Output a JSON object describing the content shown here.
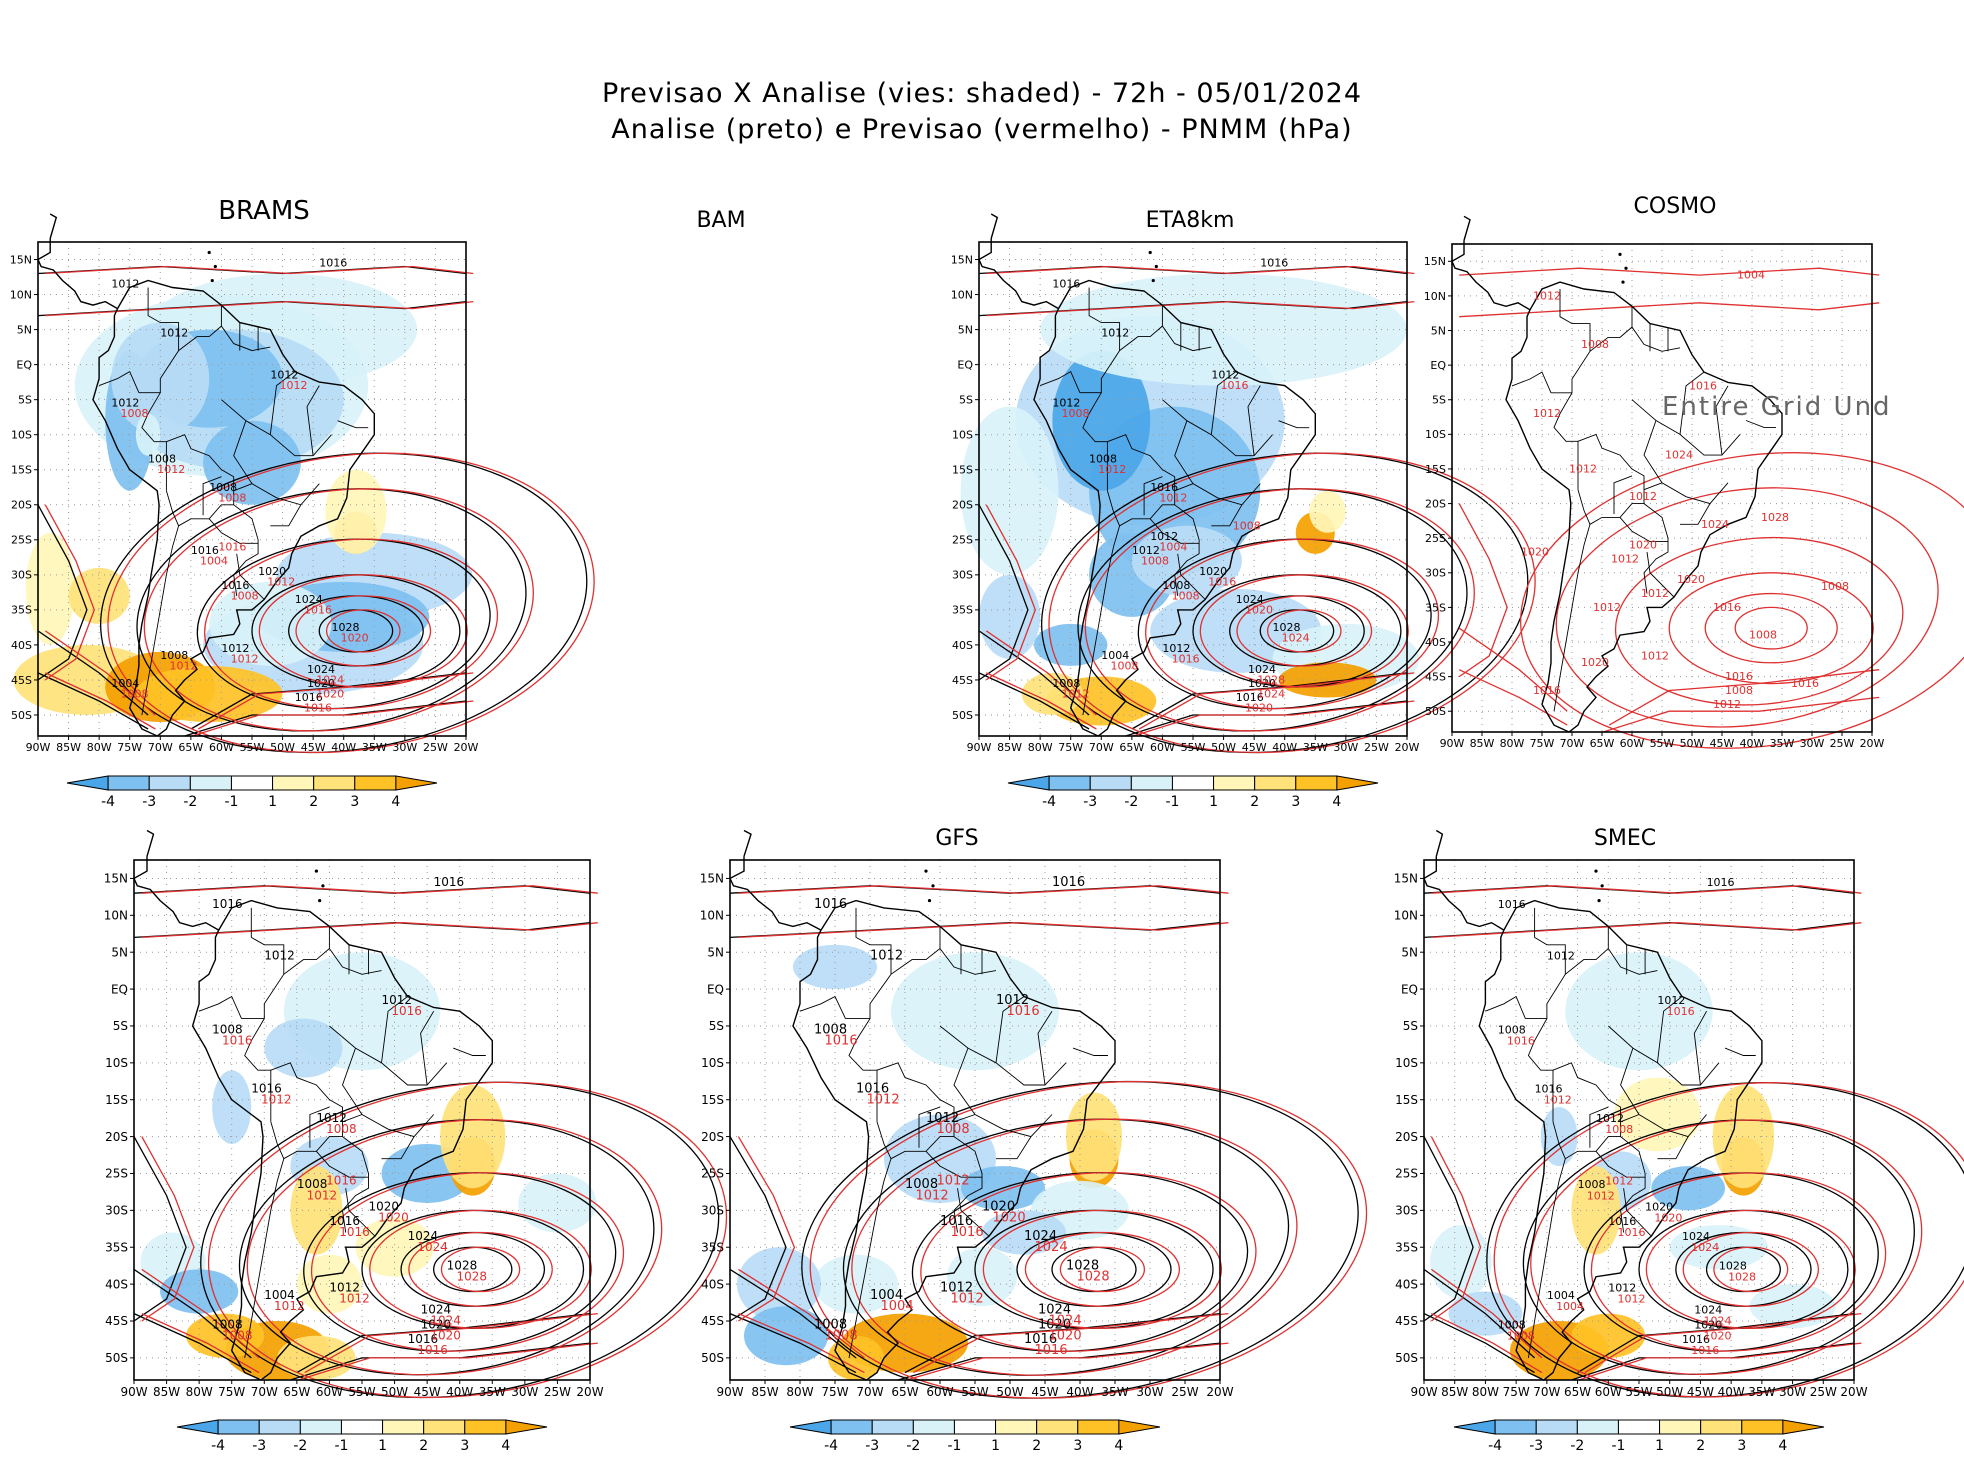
{
  "header": {
    "line1": "Previsao X Analise (vies: shaded) - 72h - 05/01/2024",
    "line2": "Analise (preto) e Previsao (vermelho) - PNMM (hPa)"
  },
  "colors": {
    "neg4": "#4aa6e8",
    "neg3": "#7ec0f0",
    "neg2": "#b8dcf6",
    "neg1": "#d8f2f8",
    "pos1": "#fff6b8",
    "pos2": "#ffe27a",
    "pos3": "#ffc226",
    "pos4": "#f4a000",
    "analysis_contour": "#000000",
    "forecast_contour": "#e03030"
  },
  "axis": {
    "lat_labels": [
      "15N",
      "10N",
      "5N",
      "EQ",
      "5S",
      "10S",
      "15S",
      "20S",
      "25S",
      "30S",
      "35S",
      "40S",
      "45S",
      "50S"
    ],
    "lon_labels": [
      "90W",
      "85W",
      "80W",
      "75W",
      "70W",
      "65W",
      "60W",
      "55W",
      "50W",
      "45W",
      "40W",
      "35W",
      "30W",
      "25W",
      "20W"
    ]
  },
  "colorbar": {
    "labels": [
      "-4",
      "-3",
      "-2",
      "-1",
      "1",
      "2",
      "3",
      "4"
    ]
  },
  "panels": [
    {
      "id": "brams",
      "title": "BRAMS",
      "show_map": true,
      "show_bias": true,
      "show_colorbar": true,
      "show_analysis": true,
      "labels_black": [
        "1016",
        "1012",
        "1012",
        "1012",
        "1012",
        "1008",
        "1008",
        "1016",
        "1016",
        "1020",
        "1024",
        "1028",
        "1024",
        "1020",
        "1016",
        "1012",
        "1004",
        "1008"
      ],
      "labels_red": [
        "1012",
        "1008",
        "1012",
        "1008",
        "1004",
        "1008",
        "1012",
        "1016",
        "1020",
        "1024",
        "1020",
        "1016",
        "1012",
        "1008",
        "1012",
        "1016"
      ]
    },
    {
      "id": "bam",
      "title": "BAM",
      "show_map": false,
      "show_bias": false,
      "show_colorbar": false,
      "show_analysis": false,
      "labels_black": [],
      "labels_red": []
    },
    {
      "id": "eta8km",
      "title": "ETA8km",
      "show_map": true,
      "show_bias": true,
      "show_colorbar": true,
      "show_analysis": true,
      "labels_black": [
        "1016",
        "1016",
        "1012",
        "1012",
        "1012",
        "1008",
        "1016",
        "1012",
        "1008",
        "1020",
        "1024",
        "1028",
        "1024",
        "1020",
        "1016",
        "1012",
        "1008",
        "1004",
        "1012"
      ],
      "labels_red": [
        "1016",
        "1008",
        "1012",
        "1012",
        "1008",
        "1008",
        "1016",
        "1020",
        "1024",
        "1028",
        "1024",
        "1020",
        "1016",
        "1012",
        "1008",
        "1004",
        "1008"
      ]
    },
    {
      "id": "cosmo",
      "title": "COSMO",
      "show_map": true,
      "show_bias": false,
      "show_colorbar": false,
      "show_analysis": false,
      "undef_text": "Entire Grid Und",
      "labels_black": [],
      "labels_red": [
        "1016",
        "1012",
        "1012",
        "1012",
        "1012",
        "1012",
        "1020",
        "1016",
        "1008",
        "1016",
        "1008",
        "1012",
        "1012",
        "1016",
        "1020",
        "1020",
        "1024",
        "1028",
        "1024",
        "1020",
        "1012",
        "1016",
        "1008",
        "1004",
        "1012",
        "1008"
      ]
    },
    {
      "id": "bottom-left",
      "title": "",
      "show_map": true,
      "show_bias": true,
      "show_colorbar": true,
      "show_analysis": true,
      "labels_black": [
        "1016",
        "1016",
        "1012",
        "1012",
        "1008",
        "1016",
        "1012",
        "1008",
        "1016",
        "1020",
        "1024",
        "1028",
        "1024",
        "1020",
        "1016",
        "1012",
        "1008",
        "1004"
      ],
      "labels_red": [
        "1016",
        "1016",
        "1012",
        "1008",
        "1012",
        "1016",
        "1020",
        "1024",
        "1028",
        "1024",
        "1020",
        "1016",
        "1012",
        "1008",
        "1012",
        "1016"
      ]
    },
    {
      "id": "gfs",
      "title": "GFS",
      "show_map": true,
      "show_bias": true,
      "show_colorbar": true,
      "show_analysis": true,
      "labels_black": [
        "1016",
        "1016",
        "1012",
        "1012",
        "1008",
        "1016",
        "1012",
        "1008",
        "1016",
        "1020",
        "1024",
        "1028",
        "1024",
        "1020",
        "1016",
        "1012",
        "1008",
        "1004"
      ],
      "labels_red": [
        "1016",
        "1016",
        "1012",
        "1008",
        "1012",
        "1016",
        "1020",
        "1024",
        "1028",
        "1024",
        "1020",
        "1016",
        "1012",
        "1008",
        "1004",
        "1012"
      ]
    },
    {
      "id": "smec",
      "title": "SMEC",
      "show_map": true,
      "show_bias": true,
      "show_colorbar": true,
      "show_analysis": true,
      "labels_black": [
        "1016",
        "1016",
        "1012",
        "1012",
        "1008",
        "1016",
        "1012",
        "1008",
        "1016",
        "1020",
        "1024",
        "1028",
        "1024",
        "1020",
        "1016",
        "1012",
        "1008",
        "1004"
      ],
      "labels_red": [
        "1016",
        "1016",
        "1012",
        "1008",
        "1012",
        "1016",
        "1020",
        "1024",
        "1028",
        "1024",
        "1020",
        "1016",
        "1012",
        "1008",
        "1004",
        "1012"
      ]
    }
  ]
}
